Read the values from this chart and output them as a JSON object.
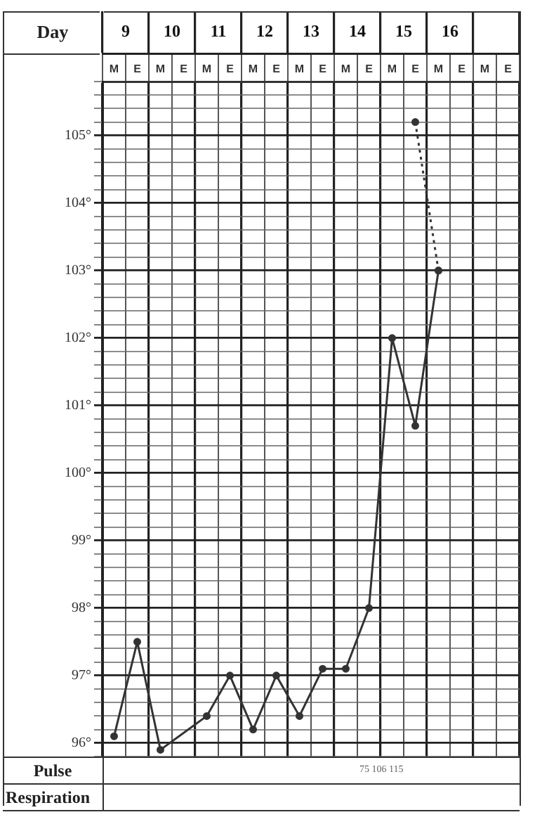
{
  "chart_data": {
    "type": "line",
    "x2label": "Day",
    "categories": [
      "M",
      "E",
      "M",
      "E",
      "M",
      "E",
      "M",
      "E",
      "M",
      "E",
      "M",
      "E",
      "M",
      "E",
      "M",
      "E",
      "M",
      "E"
    ],
    "x2lim": [
      8.5,
      17.5
    ],
    "x2ticks": [
      {
        "value": 8.5,
        "label": null
      },
      9,
      {
        "value": 9.5,
        "label": null
      },
      10,
      {
        "value": 10.5,
        "label": null
      },
      11,
      {
        "value": 11.5,
        "label": null
      },
      12,
      {
        "value": 12.5,
        "label": null
      },
      13,
      {
        "value": 13.5,
        "label": null
      },
      14,
      {
        "value": 14.5,
        "label": null
      },
      15,
      {
        "value": 15.5,
        "label": null
      },
      16,
      {
        "value": 16.5,
        "label": null
      },
      {
        "value": 17.5,
        "label": null
      }
    ],
    "ylim": [
      95.8,
      105.8
    ],
    "yticks": [
      {
        "value": 95.8,
        "label": null
      },
      {
        "value": 96,
        "label": "96°"
      },
      {
        "value": 96.2,
        "label": null
      },
      {
        "value": 96.4,
        "label": null
      },
      {
        "value": 96.6,
        "label": null
      },
      {
        "value": 96.8,
        "label": null
      },
      {
        "value": 97,
        "label": "97°"
      },
      {
        "value": 97.2,
        "label": null
      },
      {
        "value": 97.4,
        "label": null
      },
      {
        "value": 97.6,
        "label": null
      },
      {
        "value": 97.8,
        "label": null
      },
      {
        "value": 98,
        "label": "98°"
      },
      {
        "value": 98.2,
        "label": null
      },
      {
        "value": 98.4,
        "label": null
      },
      {
        "value": 98.6,
        "label": null
      },
      {
        "value": 98.8,
        "label": null
      },
      {
        "value": 99,
        "label": "99°"
      },
      {
        "value": 99.2,
        "label": null
      },
      {
        "value": 99.4,
        "label": null
      },
      {
        "value": 99.6,
        "label": null
      },
      {
        "value": 99.8,
        "label": null
      },
      {
        "value": 100,
        "label": "100°"
      },
      {
        "value": 100.2,
        "label": null
      },
      {
        "value": 100.4,
        "label": null
      },
      {
        "value": 100.6,
        "label": null
      },
      {
        "value": 100.8,
        "label": null
      },
      {
        "value": 101,
        "label": "101°"
      },
      {
        "value": 101.2,
        "label": null
      },
      {
        "value": 101.4,
        "label": null
      },
      {
        "value": 101.6,
        "label": null
      },
      {
        "value": 101.8,
        "label": null
      },
      {
        "value": 102,
        "label": "102°"
      },
      {
        "value": 102.2,
        "label": null
      },
      {
        "value": 102.4,
        "label": null
      },
      {
        "value": 102.6,
        "label": null
      },
      {
        "value": 102.8,
        "label": null
      },
      {
        "value": 103,
        "label": "103°"
      },
      {
        "value": 103.2,
        "label": null
      },
      {
        "value": 103.4,
        "label": null
      },
      {
        "value": 103.6,
        "label": null
      },
      {
        "value": 103.8,
        "label": null
      },
      {
        "value": 104,
        "label": "104°"
      },
      {
        "value": 104.2,
        "label": null
      },
      {
        "value": 104.4,
        "label": null
      },
      {
        "value": 104.6,
        "label": null
      },
      {
        "value": 104.8,
        "label": null
      },
      {
        "value": 105,
        "label": "105°"
      },
      {
        "value": 105.2,
        "label": null
      },
      {
        "value": 105.4,
        "label": null
      },
      {
        "value": 105.6,
        "label": null
      },
      {
        "value": 105.8,
        "label": null
      }
    ],
    "series": [
      {
        "color": "#333333",
        "line_style": "solid",
        "values": [
          96.1,
          97.5,
          95.9,
          null,
          96.4,
          97.0,
          96.2,
          97.0,
          96.4,
          97.1,
          97.1,
          98.0,
          102.0,
          100.7,
          103.0,
          null,
          null,
          null
        ]
      },
      {
        "color": "#333333",
        "line_style": "dotted",
        "values": [
          null,
          null,
          null,
          null,
          null,
          null,
          null,
          null,
          null,
          null,
          null,
          null,
          null,
          105.2,
          103.0,
          null,
          null,
          null
        ]
      }
    ],
    "marker": "circle",
    "grid": true,
    "legend": false,
    "annotations": [
      "Pulse",
      "Respiration",
      "75 106 115"
    ]
  }
}
